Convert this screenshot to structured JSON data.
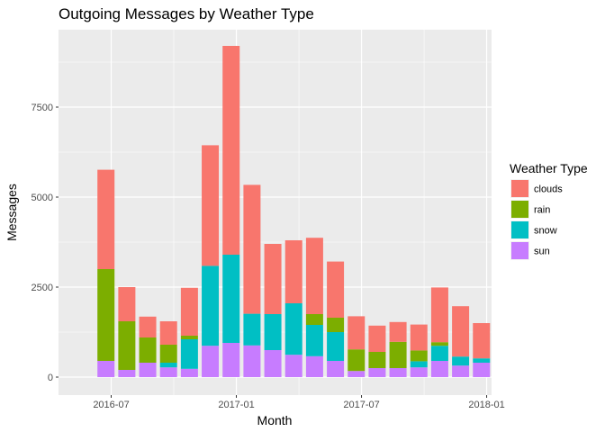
{
  "chart_data": {
    "type": "bar",
    "stacked": true,
    "title": "Outgoing Messages by Weather Type",
    "xlabel": "Month",
    "ylabel": "Messages",
    "categories": [
      "2016-06",
      "2016-07",
      "2016-08",
      "2016-09",
      "2016-10",
      "2016-11",
      "2016-12",
      "2017-01",
      "2017-02",
      "2017-03",
      "2017-04",
      "2017-05",
      "2017-06",
      "2017-07",
      "2017-08",
      "2017-09",
      "2017-10",
      "2017-11",
      "2017-12"
    ],
    "x_ticks": [
      {
        "label": "2016-07",
        "month_index": 1
      },
      {
        "label": "2017-01",
        "month_index": 7
      },
      {
        "label": "2017-07",
        "month_index": 13
      },
      {
        "label": "2018-01",
        "month_index": 19
      }
    ],
    "y_ticks": [
      0,
      2500,
      5000,
      7500
    ],
    "ylim": [
      -500,
      9650
    ],
    "grid": true,
    "legend": {
      "title": "Weather Type",
      "placement": "right"
    },
    "series": [
      {
        "name": "sun",
        "color": "#C77CFF",
        "values": [
          450,
          200,
          400,
          270,
          230,
          870,
          950,
          880,
          750,
          620,
          580,
          450,
          170,
          250,
          250,
          270,
          450,
          320,
          400
        ]
      },
      {
        "name": "snow",
        "color": "#00BFC4",
        "values": [
          0,
          0,
          0,
          130,
          820,
          2220,
          2450,
          880,
          1000,
          1430,
          870,
          800,
          0,
          0,
          0,
          170,
          420,
          250,
          120
        ]
      },
      {
        "name": "rain",
        "color": "#7CAE00",
        "values": [
          2550,
          1350,
          700,
          500,
          100,
          0,
          0,
          0,
          0,
          0,
          300,
          400,
          600,
          450,
          730,
          300,
          100,
          0,
          0
        ]
      },
      {
        "name": "clouds",
        "color": "#F8766D",
        "values": [
          2760,
          950,
          580,
          650,
          1330,
          3350,
          5800,
          3580,
          1950,
          1750,
          2120,
          1560,
          920,
          730,
          550,
          720,
          1520,
          1400,
          980
        ]
      }
    ],
    "legend_order": [
      "clouds",
      "rain",
      "snow",
      "sun"
    ]
  }
}
